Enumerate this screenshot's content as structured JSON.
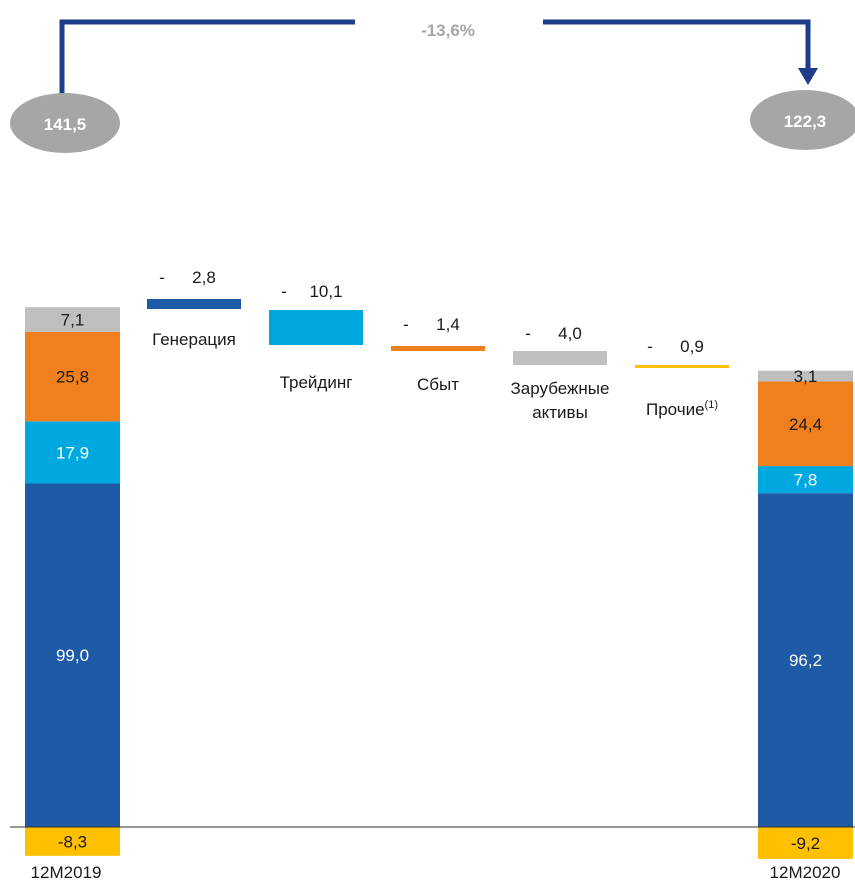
{
  "chart_data": {
    "type": "waterfall",
    "change": "-13,6%",
    "start": {
      "category": "12M2019",
      "total": "141,5",
      "segments": [
        {
          "key": "gen",
          "value": 99.0,
          "label": "99,0"
        },
        {
          "key": "trade",
          "value": 17.9,
          "label": "17,9"
        },
        {
          "key": "sales",
          "value": 25.8,
          "label": "25,8"
        },
        {
          "key": "foreign",
          "value": 7.1,
          "label": "7,1"
        }
      ],
      "negative": {
        "value": -8.3,
        "label": "-8,3"
      }
    },
    "end": {
      "category": "12M2020",
      "total": "122,3",
      "segments": [
        {
          "key": "gen",
          "value": 96.2,
          "label": "96,2"
        },
        {
          "key": "trade",
          "value": 7.8,
          "label": "7,8"
        },
        {
          "key": "sales",
          "value": 24.4,
          "label": "24,4"
        },
        {
          "key": "foreign",
          "value": 3.1,
          "label": "3,1"
        }
      ],
      "negative": {
        "value": -9.2,
        "label": "-9,2"
      }
    },
    "steps": [
      {
        "key": "gen",
        "category": "Генерация",
        "value": -2.8,
        "sign": "-",
        "label": "2,8"
      },
      {
        "key": "trade",
        "category": "Трейдинг",
        "value": -10.1,
        "sign": "-",
        "label": "10,1"
      },
      {
        "key": "sales",
        "category": "Сбыт",
        "value": -1.4,
        "sign": "-",
        "label": "1,4"
      },
      {
        "key": "foreign",
        "category": "Зарубежные\nактивы",
        "value": -4.0,
        "sign": "-",
        "label": "4,0"
      },
      {
        "key": "other",
        "category": "Прочие",
        "sup": "(1)",
        "value": -0.9,
        "sign": "-",
        "label": "0,9"
      }
    ],
    "colors": {
      "gen": "#1f5aa6",
      "trade": "#00a8e0",
      "sales": "#f07f1e",
      "foreign": "#bfbfbf",
      "other": "#ffc000",
      "negative": "#ffc000",
      "arrow": "#1f3c88",
      "oval": "#a6a6a6"
    }
  }
}
